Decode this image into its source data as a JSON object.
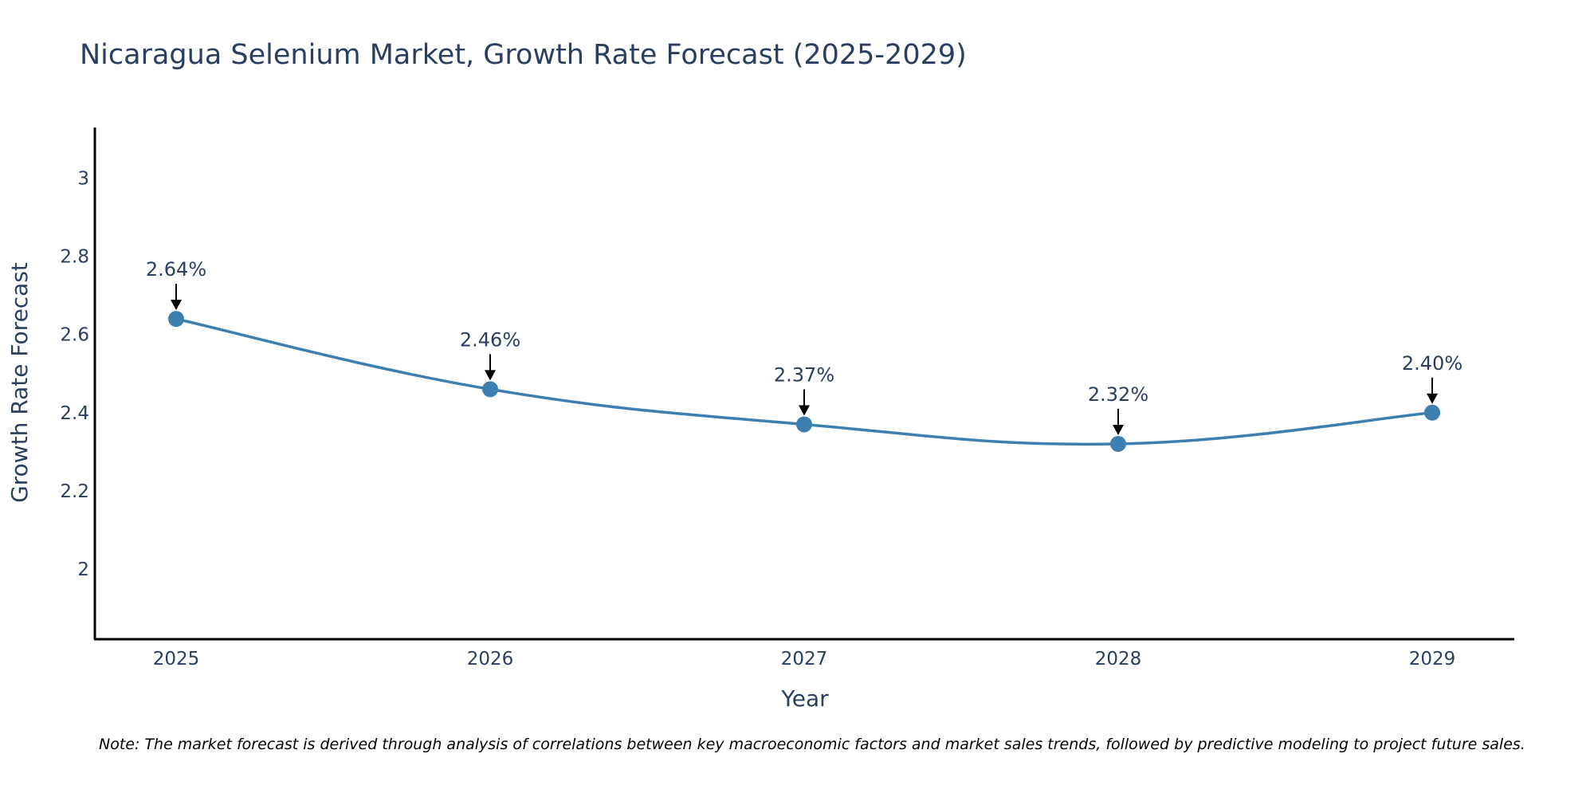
{
  "chart_data": {
    "type": "line",
    "title": "Nicaragua Selenium Market, Growth Rate Forecast (2025-2029)",
    "xlabel": "Year",
    "ylabel": "Growth Rate Forecast",
    "categories": [
      "2025",
      "2026",
      "2027",
      "2028",
      "2029"
    ],
    "series": [
      {
        "name": "Growth Rate Forecast",
        "values": [
          2.64,
          2.46,
          2.37,
          2.32,
          2.4
        ]
      }
    ],
    "data_labels": [
      "2.64%",
      "2.46%",
      "2.37%",
      "2.32%",
      "2.40%"
    ],
    "y_ticks": [
      2,
      2.2,
      2.4,
      2.6,
      2.8,
      3
    ],
    "y_tick_labels": [
      "2",
      "2.2",
      "2.4",
      "2.6",
      "2.8",
      "3"
    ],
    "ylim": [
      1.82,
      3.13
    ],
    "grid": false,
    "legend": "none",
    "note": "Note: The market forecast is derived through analysis of correlations between key macroeconomic factors and market sales trends, followed by predictive modeling to project future sales."
  },
  "colors": {
    "line": "#3d7fb0",
    "marker": "#3d7fb0",
    "axis": "#000000",
    "text": "#2a3f5f",
    "arrow": "#000000"
  }
}
